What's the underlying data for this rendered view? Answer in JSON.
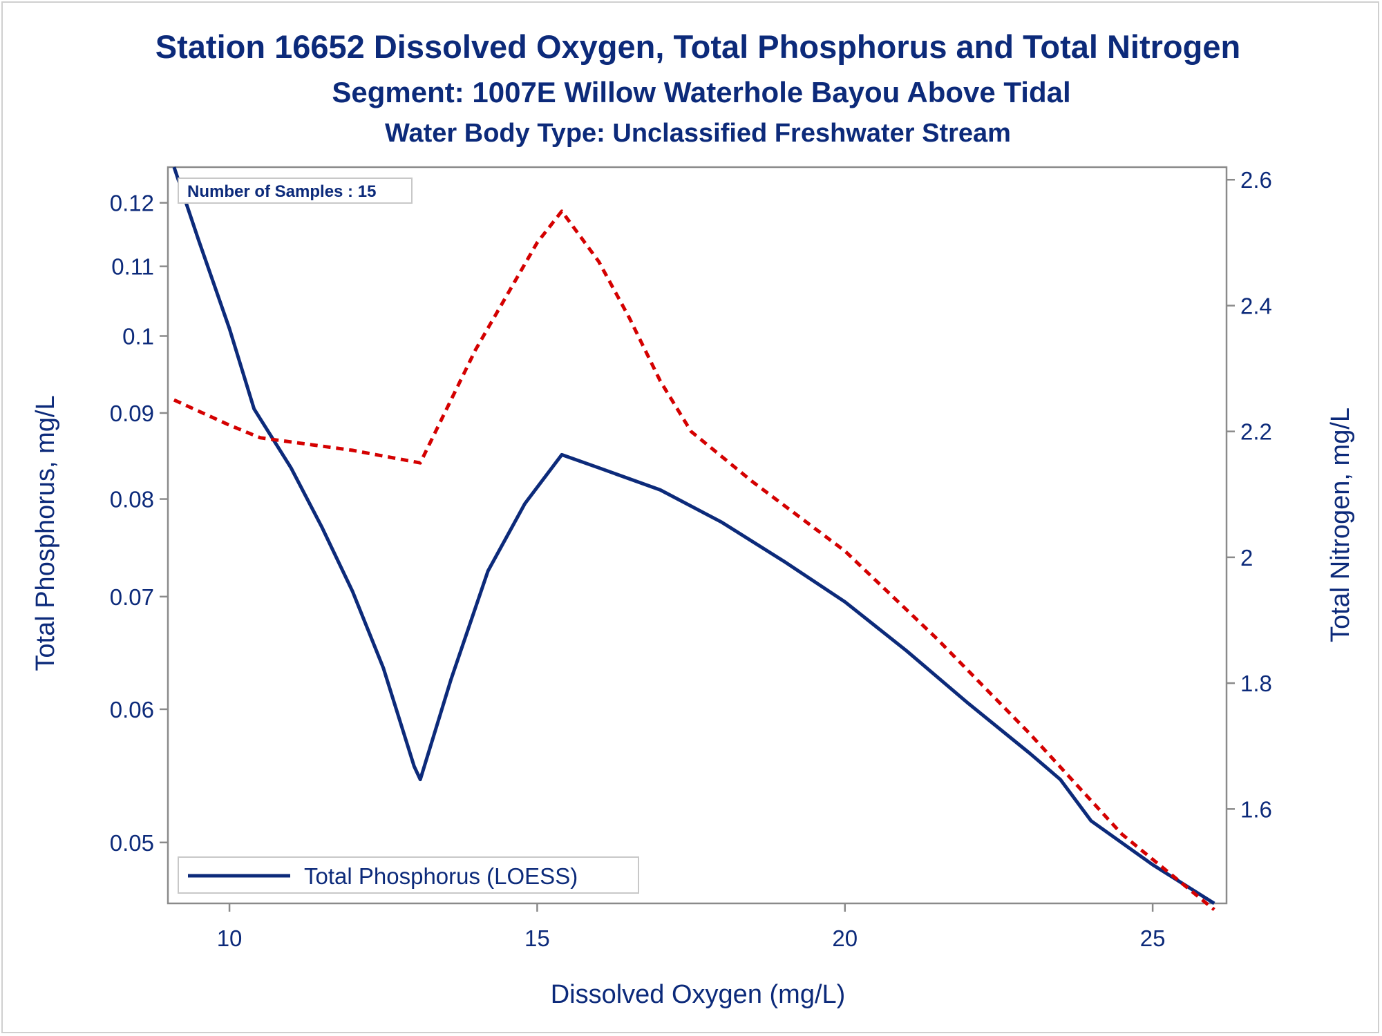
{
  "chart_data": {
    "type": "line",
    "title": "Station 16652  Dissolved Oxygen, Total Phosphorus and Total Nitrogen",
    "subtitle": "Segment: 1007E  Willow Waterhole Bayou Above Tidal",
    "subtitle2": "Water Body Type: Unclassified Freshwater Stream",
    "xlabel": "Dissolved Oxygen (mg/L)",
    "ylabel": "Total Phosphorus, mg/L",
    "y2label": "Total Nitrogen, mg/L",
    "xlim": [
      9,
      26.2
    ],
    "ylim": [
      0.046,
      0.126
    ],
    "yscale": "log",
    "y2lim": [
      1.45,
      2.62
    ],
    "x_ticks": [
      "10",
      "15",
      "20",
      "25"
    ],
    "x_tick_values": [
      10,
      15,
      20,
      25
    ],
    "y_ticks": [
      "0.05",
      "0.06",
      "0.07",
      "0.08",
      "0.09",
      "0.1",
      "0.11",
      "0.12"
    ],
    "y_tick_values": [
      0.05,
      0.06,
      0.07,
      0.08,
      0.09,
      0.1,
      0.11,
      0.12
    ],
    "y2_ticks": [
      "1.6",
      "1.8",
      "2",
      "2.2",
      "2.4",
      "2.6"
    ],
    "y2_tick_values": [
      1.6,
      1.8,
      2.0,
      2.2,
      2.4,
      2.6
    ],
    "annotation": "Number of Samples : 15",
    "legend_position": "bottom-left",
    "series": [
      {
        "name": "Total Phosphorus (LOESS)",
        "axis": "left",
        "color": "#0c2a7a",
        "style": "solid",
        "x": [
          9.1,
          9.5,
          10.0,
          10.4,
          11.0,
          11.5,
          12.0,
          12.5,
          13.0,
          13.1,
          13.6,
          14.2,
          14.8,
          15.4,
          16.0,
          17.0,
          18.0,
          19.0,
          20.0,
          21.0,
          22.0,
          23.0,
          23.5,
          24.0,
          25.0,
          26.0
        ],
        "values": [
          0.126,
          0.114,
          0.101,
          0.0905,
          0.0835,
          0.077,
          0.0705,
          0.0635,
          0.0555,
          0.0545,
          0.0625,
          0.0725,
          0.0795,
          0.085,
          0.0835,
          0.081,
          0.0775,
          0.0735,
          0.0695,
          0.065,
          0.0605,
          0.0565,
          0.0545,
          0.0515,
          0.0485,
          0.046
        ]
      },
      {
        "name": "",
        "axis": "right",
        "color": "#d40000",
        "style": "dashed",
        "x": [
          9.1,
          10.0,
          10.5,
          12.0,
          13.1,
          14.0,
          15.0,
          15.4,
          16.0,
          16.5,
          17.0,
          17.5,
          18.5,
          20.0,
          21.5,
          23.0,
          24.5,
          26.0
        ],
        "values": [
          2.25,
          2.21,
          2.19,
          2.17,
          2.15,
          2.33,
          2.5,
          2.55,
          2.47,
          2.38,
          2.28,
          2.2,
          2.12,
          2.01,
          1.87,
          1.72,
          1.56,
          1.44
        ]
      }
    ]
  }
}
